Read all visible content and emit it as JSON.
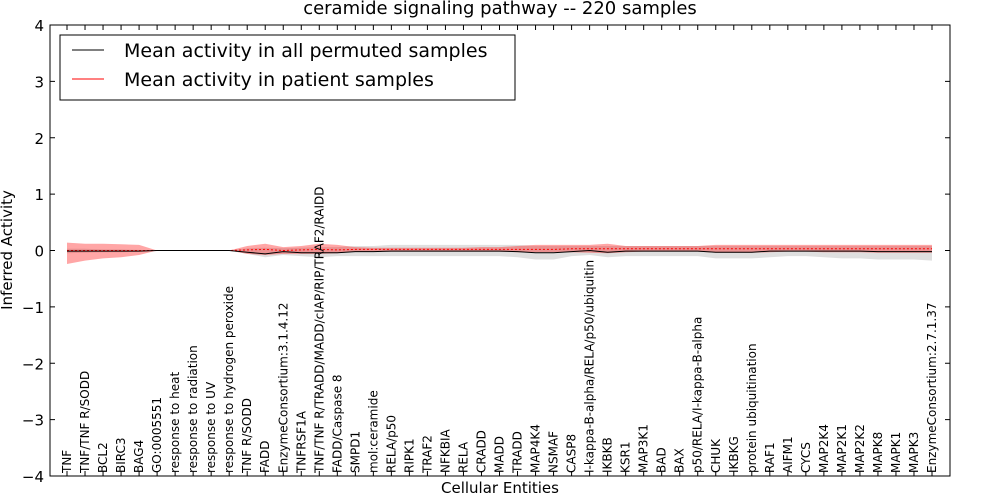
{
  "chart_data": {
    "type": "line",
    "title": "ceramide signaling pathway -- 220 samples",
    "xlabel": "Cellular Entities",
    "ylabel": "Inferred Activity",
    "ylim": [
      -4,
      4
    ],
    "yticks": [
      -4,
      -3,
      -2,
      -1,
      0,
      1,
      2,
      3,
      4
    ],
    "ytick_labels": [
      "−4",
      "−3",
      "−2",
      "−1",
      "0",
      "1",
      "2",
      "3",
      "4"
    ],
    "grid": false,
    "legend_position": "top-left",
    "categories": [
      "TNF",
      "TNF/TNF R/SODD",
      "BCL2",
      "BIRC3",
      "BAG4",
      "GO:0005551",
      "response to heat",
      "response to radiation",
      "response to UV",
      "response to hydrogen peroxide",
      "TNF R/SODD",
      "FADD",
      "EnzymeConsortium:3.1.4.12",
      "TNFRSF1A",
      "TNF/TNF R/TRADD/MADD/cIAP/RIP/TRAF2/RAIDD",
      "FADD/Caspase 8",
      "SMPD1",
      "mol:ceramide",
      "RELA/p50",
      "RIPK1",
      "TRAF2",
      "NFKBIA",
      "RELA",
      "CRADD",
      "MADD",
      "TRADD",
      "MAP4K4",
      "NSMAF",
      "CASP8",
      "I-kappa-B-alpha/RELA/p50/ubiquitin",
      "IKBKB",
      "KSR1",
      "MAP3K1",
      "BAD",
      "BAX",
      "p50/RELA/I-kappa-B-alpha",
      "CHUK",
      "IKBKG",
      "protein ubiquitination",
      "RAF1",
      "AIFM1",
      "CYCS",
      "MAP2K4",
      "MAP2K1",
      "MAP2K2",
      "MAPK8",
      "MAPK1",
      "MAPK3",
      "EnzymeConsortium:2.7.1.37"
    ],
    "series": [
      {
        "name": "Mean activity in all permuted samples",
        "color": "#000000",
        "values": [
          -0.01,
          -0.01,
          -0.01,
          -0.01,
          -0.01,
          0,
          0,
          0,
          0,
          0,
          -0.03,
          -0.06,
          -0.02,
          -0.04,
          -0.04,
          -0.04,
          -0.02,
          -0.02,
          -0.01,
          -0.01,
          -0.01,
          -0.01,
          -0.01,
          -0.01,
          -0.01,
          -0.02,
          -0.04,
          -0.04,
          -0.02,
          0,
          -0.03,
          -0.01,
          -0.01,
          -0.01,
          -0.01,
          -0.01,
          -0.03,
          -0.03,
          -0.03,
          -0.01,
          -0.01,
          -0.01,
          -0.01,
          -0.01,
          -0.01,
          -0.02,
          -0.02,
          -0.02,
          -0.02
        ],
        "band_lower": [
          -0.05,
          -0.04,
          -0.03,
          -0.03,
          -0.02,
          0,
          0,
          0,
          0,
          0,
          -0.06,
          -0.12,
          -0.08,
          -0.1,
          -0.12,
          -0.1,
          -0.1,
          -0.1,
          -0.1,
          -0.1,
          -0.1,
          -0.1,
          -0.1,
          -0.1,
          -0.1,
          -0.12,
          -0.16,
          -0.16,
          -0.1,
          -0.08,
          -0.12,
          -0.1,
          -0.1,
          -0.1,
          -0.1,
          -0.1,
          -0.14,
          -0.14,
          -0.14,
          -0.12,
          -0.1,
          -0.1,
          -0.12,
          -0.14,
          -0.14,
          -0.16,
          -0.16,
          -0.16,
          -0.18
        ],
        "band_upper": [
          0.03,
          0.03,
          0.02,
          0.02,
          0.01,
          0,
          0,
          0,
          0,
          0,
          0.04,
          0.05,
          0.04,
          0.05,
          0.06,
          0.06,
          0.08,
          0.08,
          0.1,
          0.1,
          0.1,
          0.1,
          0.1,
          0.1,
          0.1,
          0.1,
          0.08,
          0.08,
          0.08,
          0.08,
          0.08,
          0.08,
          0.08,
          0.08,
          0.08,
          0.08,
          0.08,
          0.08,
          0.08,
          0.08,
          0.08,
          0.08,
          0.08,
          0.08,
          0.08,
          0.08,
          0.08,
          0.08,
          0.08
        ]
      },
      {
        "name": "Mean activity in patient samples",
        "color": "#ff0000",
        "values": [
          0.0,
          0.0,
          0.0,
          0.0,
          0.0,
          0,
          0,
          0,
          0,
          0,
          0.01,
          0.02,
          0.0,
          0.01,
          0.02,
          0.01,
          0.02,
          0.02,
          0.02,
          0.02,
          0.02,
          0.02,
          0.02,
          0.02,
          0.02,
          0.02,
          0.02,
          0.02,
          0.03,
          0.03,
          0.03,
          0.03,
          0.03,
          0.03,
          0.03,
          0.03,
          0.03,
          0.03,
          0.03,
          0.03,
          0.03,
          0.03,
          0.03,
          0.03,
          0.03,
          0.03,
          0.03,
          0.03,
          0.03
        ],
        "band_lower": [
          -0.24,
          -0.18,
          -0.14,
          -0.12,
          -0.08,
          0,
          0,
          0,
          0,
          0,
          -0.06,
          -0.08,
          -0.06,
          -0.06,
          -0.06,
          -0.05,
          -0.02,
          -0.02,
          -0.02,
          -0.02,
          -0.02,
          -0.02,
          -0.02,
          -0.02,
          -0.02,
          -0.03,
          -0.03,
          -0.03,
          -0.03,
          -0.04,
          -0.05,
          -0.03,
          -0.02,
          -0.02,
          -0.02,
          -0.02,
          -0.04,
          -0.04,
          -0.04,
          -0.03,
          -0.02,
          -0.02,
          -0.03,
          -0.03,
          -0.03,
          -0.04,
          -0.04,
          -0.04,
          -0.04
        ],
        "band_upper": [
          0.14,
          0.12,
          0.12,
          0.11,
          0.1,
          0,
          0,
          0,
          0,
          0,
          0.08,
          0.12,
          0.06,
          0.08,
          0.12,
          0.1,
          0.06,
          0.05,
          0.05,
          0.05,
          0.05,
          0.05,
          0.05,
          0.06,
          0.06,
          0.08,
          0.1,
          0.1,
          0.1,
          0.1,
          0.12,
          0.08,
          0.08,
          0.08,
          0.08,
          0.08,
          0.1,
          0.1,
          0.1,
          0.1,
          0.1,
          0.1,
          0.1,
          0.1,
          0.1,
          0.1,
          0.1,
          0.1,
          0.1
        ]
      }
    ]
  }
}
